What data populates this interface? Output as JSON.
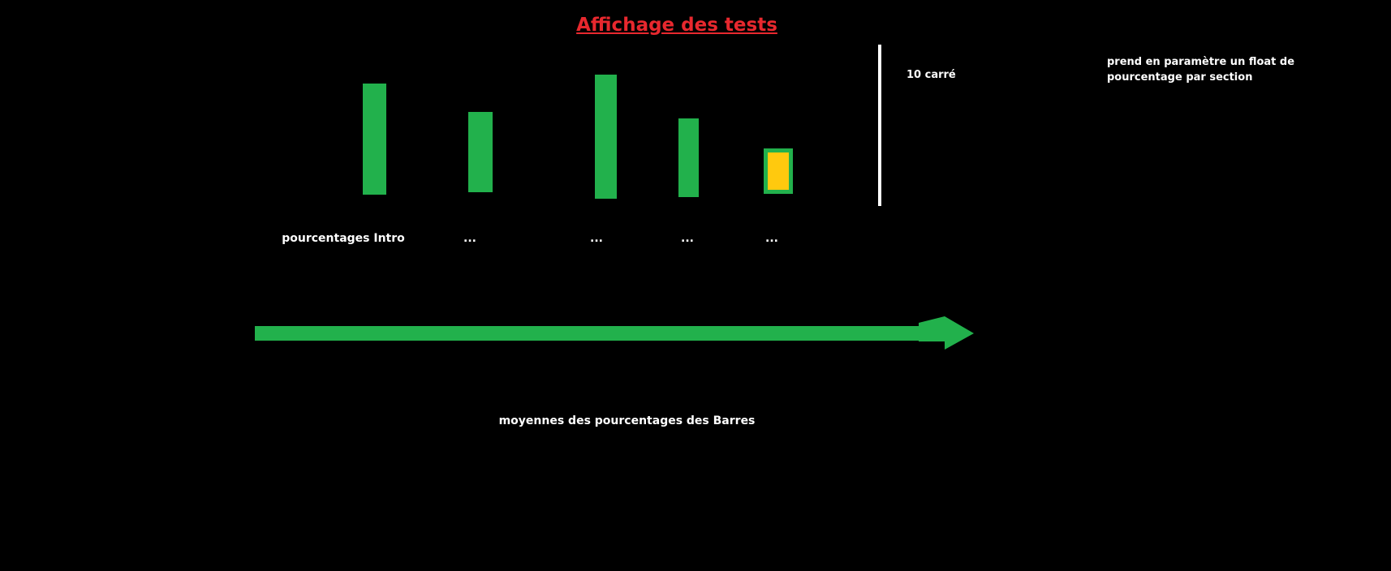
{
  "title": "Affichage des tests",
  "scale_label": "10 carré",
  "note_lines": [
    "prend en paramètre un float de",
    "pourcentage par section"
  ],
  "bottom_label": "moyennes des pourcentages des Barres",
  "colors": {
    "background": "#000000",
    "title": "#e8282e",
    "bar": "#22b14c",
    "highlight": "#ffc90e",
    "arrow": "#22b14c",
    "scale_line": "#ffffff"
  },
  "bars": [
    {
      "label": "pourcentages Intro",
      "highlight": false
    },
    {
      "label": "...",
      "highlight": false
    },
    {
      "label": "...",
      "highlight": false
    },
    {
      "label": "...",
      "highlight": false
    },
    {
      "label": "...",
      "highlight": true
    }
  ]
}
